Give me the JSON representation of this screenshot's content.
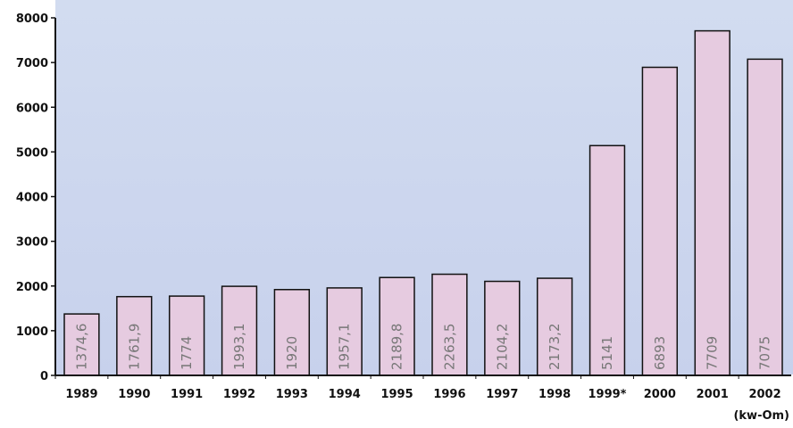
{
  "chart_data": {
    "type": "bar",
    "categories": [
      "1989",
      "1990",
      "1991",
      "1992",
      "1993",
      "1994",
      "1995",
      "1996",
      "1997",
      "1998",
      "1999*",
      "2000",
      "2001",
      "2002"
    ],
    "values": [
      1374.6,
      1761.9,
      1774,
      1993.1,
      1920,
      1957.1,
      2189.8,
      2263.5,
      2104.2,
      2173.2,
      5141,
      6893,
      7709,
      7075
    ],
    "data_labels": [
      "1374,6",
      "1761,9",
      "1774",
      "1993,1",
      "1920",
      "1957,1",
      "2189,8",
      "2263,5",
      "2104,2",
      "2173,2",
      "5141",
      "6893",
      "7709",
      "7075"
    ],
    "yticks": [
      "0",
      "1000",
      "2000",
      "3000",
      "4000",
      "5000",
      "6000",
      "7000",
      "8000"
    ],
    "ylim": [
      0,
      8000
    ],
    "unit_label": "(kw-Om)",
    "title": "",
    "xlabel": "",
    "ylabel": "",
    "grid": false,
    "colors": {
      "bar_fill": "#e6cbe0",
      "bar_stroke": "#111111",
      "plot_background_top": "#d2dcf0",
      "plot_background_bottom": "#c7d1ec"
    }
  }
}
